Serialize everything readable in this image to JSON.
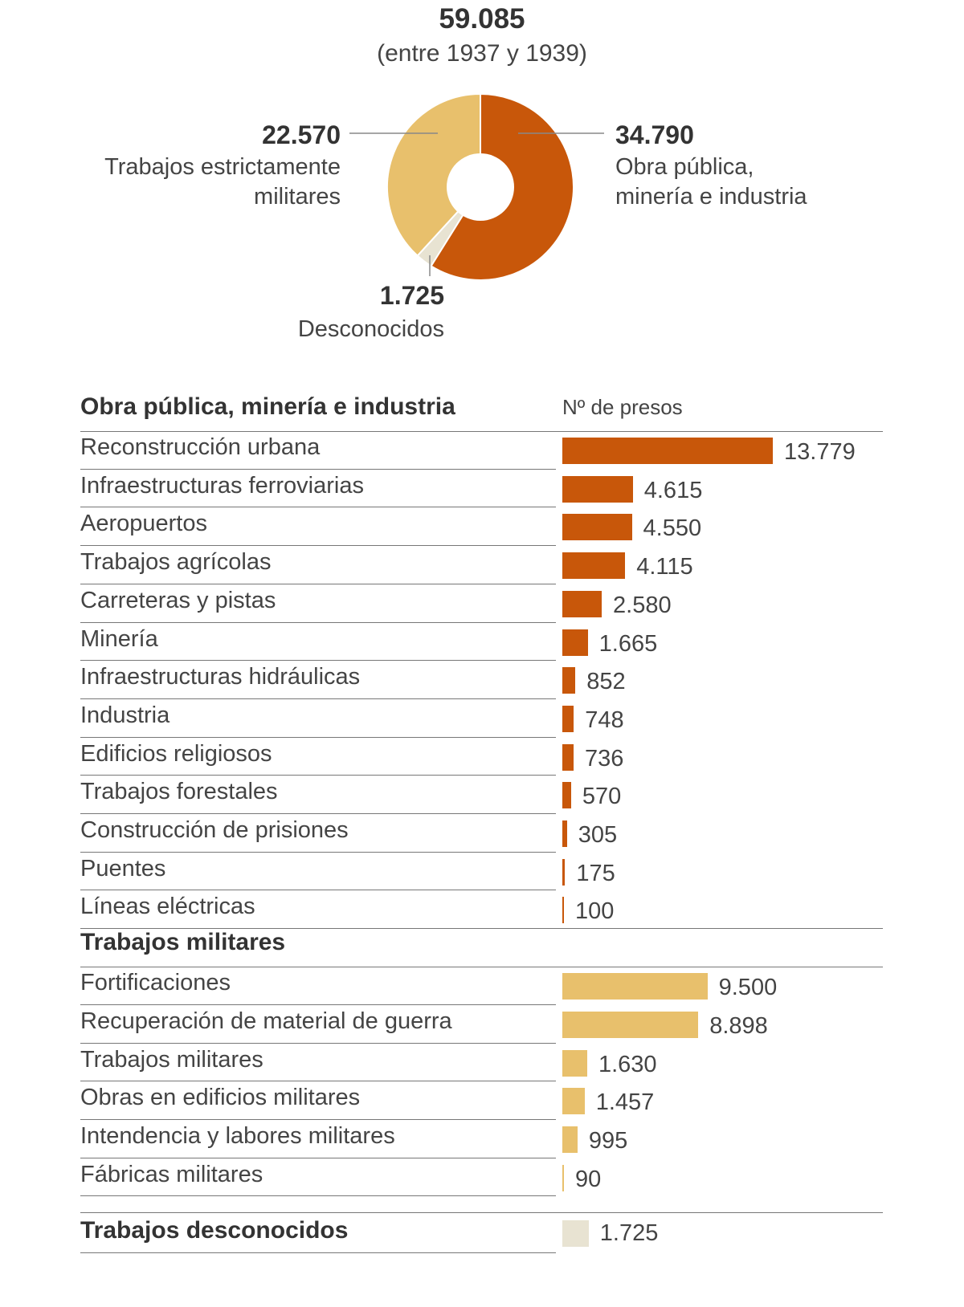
{
  "header": {
    "total": "59.085",
    "period": "(entre 1937 y 1939)"
  },
  "chart_data": [
    {
      "type": "pie",
      "title": "59.085",
      "subtitle": "(entre 1937 y 1939)",
      "slices": [
        {
          "name": "Obra pública, minería e industria",
          "value": 34790,
          "label": "34.790",
          "color": "#c8570a"
        },
        {
          "name": "Desconocidos",
          "value": 1725,
          "label": "1.725",
          "color": "#e8e3d2"
        },
        {
          "name": "Trabajos estrictamente militares",
          "value": 22570,
          "label": "22.570",
          "color": "#e8c06c"
        }
      ],
      "labels": {
        "obra": {
          "value": "34.790",
          "line1": "Obra pública,",
          "line2": "minería e industria"
        },
        "militar": {
          "value": "22.570",
          "line1": "Trabajos estrictamente",
          "line2": "militares"
        },
        "desconocidos": {
          "value": "1.725",
          "line1": "Desconocidos"
        }
      }
    },
    {
      "type": "bar",
      "orientation": "horizontal",
      "column_header": "Nº de presos",
      "max": 13779,
      "sections": [
        {
          "title": "Obra pública, minería e industria",
          "color": "#c8570a",
          "rows": [
            {
              "label": "Reconstrucción urbana",
              "value": 13779,
              "display": "13.779"
            },
            {
              "label": "Infraestructuras ferroviarias",
              "value": 4615,
              "display": "4.615"
            },
            {
              "label": "Aeropuertos",
              "value": 4550,
              "display": "4.550"
            },
            {
              "label": "Trabajos agrícolas",
              "value": 4115,
              "display": "4.115"
            },
            {
              "label": "Carreteras y pistas",
              "value": 2580,
              "display": "2.580"
            },
            {
              "label": "Minería",
              "value": 1665,
              "display": "1.665"
            },
            {
              "label": "Infraestructuras hidráulicas",
              "value": 852,
              "display": "852"
            },
            {
              "label": "Industria",
              "value": 748,
              "display": "748"
            },
            {
              "label": "Edificios religiosos",
              "value": 736,
              "display": "736"
            },
            {
              "label": "Trabajos forestales",
              "value": 570,
              "display": "570"
            },
            {
              "label": "Construcción de prisiones",
              "value": 305,
              "display": "305"
            },
            {
              "label": "Puentes",
              "value": 175,
              "display": "175"
            },
            {
              "label": "Líneas eléctricas",
              "value": 100,
              "display": "100"
            }
          ]
        },
        {
          "title": "Trabajos militares",
          "color": "#e8c06c",
          "rows": [
            {
              "label": "Fortificaciones",
              "value": 9500,
              "display": "9.500"
            },
            {
              "label": "Recuperación de material de guerra",
              "value": 8898,
              "display": "8.898"
            },
            {
              "label": "Trabajos militares",
              "value": 1630,
              "display": "1.630"
            },
            {
              "label": "Obras en edificios militares",
              "value": 1457,
              "display": "1.457"
            },
            {
              "label": "Intendencia y labores militares",
              "value": 995,
              "display": "995"
            },
            {
              "label": "Fábricas militares",
              "value": 90,
              "display": "90"
            }
          ]
        },
        {
          "title": "Trabajos desconocidos",
          "color": "#e8e3d2",
          "rows": [
            {
              "label": "",
              "value": 1725,
              "display": "1.725"
            }
          ]
        }
      ]
    }
  ]
}
